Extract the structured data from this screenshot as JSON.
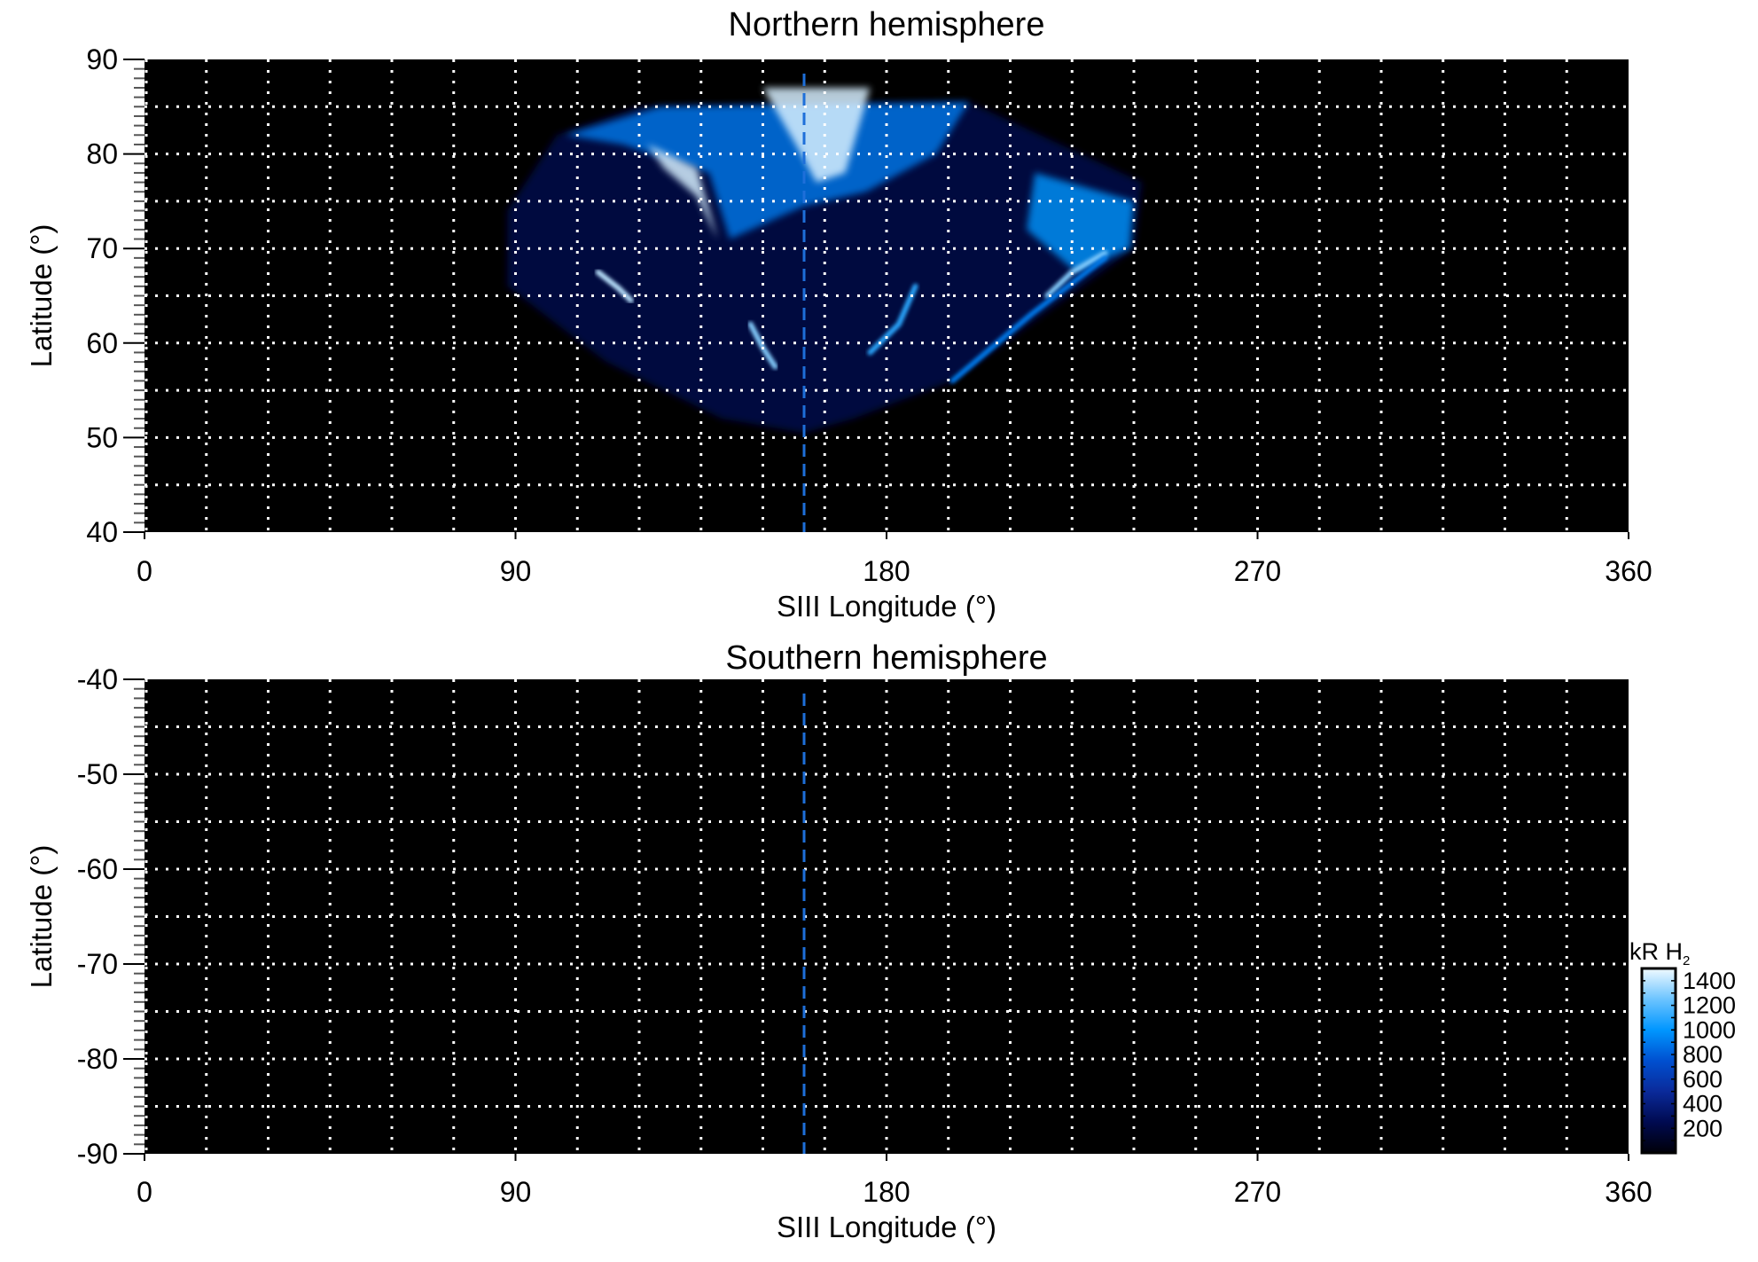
{
  "chart_data": [
    {
      "type": "heatmap",
      "title": "Northern hemisphere",
      "xlabel": "SIII Longitude (°)",
      "ylabel": "Latitude (°)",
      "xlim": [
        0,
        360
      ],
      "ylim": [
        40,
        90
      ],
      "xticks": [
        0,
        90,
        180,
        270,
        360
      ],
      "yticks": [
        40,
        50,
        60,
        70,
        80,
        90
      ],
      "grid": true,
      "grid_x_step": 15,
      "grid_y_step": 5,
      "reference_longitude": 160,
      "reference_line_color": "#1e6fd9",
      "background_color": "#000000",
      "features": [
        {
          "kind": "region",
          "kR": 250,
          "points": [
            [
              88,
              74
            ],
            [
              100,
              82
            ],
            [
              120,
              85
            ],
            [
              200,
              85.5
            ],
            [
              242,
              77
            ],
            [
              240,
              70
            ],
            [
              218,
              63
            ],
            [
              196,
              56
            ],
            [
              172,
              52
            ],
            [
              160,
              50.5
            ],
            [
              140,
              52
            ],
            [
              112,
              58
            ],
            [
              88,
              66
            ]
          ]
        },
        {
          "kind": "region",
          "kR": 900,
          "points": [
            [
              102,
              82
            ],
            [
              125,
              85
            ],
            [
              200,
              85.5
            ],
            [
              192,
              80
            ],
            [
              175,
              76
            ],
            [
              160,
              74.5
            ],
            [
              142,
              71
            ],
            [
              137,
              78
            ],
            [
              116,
              81
            ]
          ]
        },
        {
          "kind": "region",
          "kR": 1000,
          "points": [
            [
              216,
              78
            ],
            [
              240,
              75
            ],
            [
              239,
              70
            ],
            [
              226,
              67.5
            ],
            [
              214,
              72
            ]
          ]
        },
        {
          "kind": "region",
          "kR": 1450,
          "points": [
            [
              150,
              87
            ],
            [
              176,
              87
            ],
            [
              170,
              78
            ],
            [
              163,
              77
            ],
            [
              158,
              81
            ]
          ]
        },
        {
          "kind": "region",
          "kR": 1450,
          "points": [
            [
              122,
              81
            ],
            [
              134,
              78.5
            ],
            [
              139,
              71
            ],
            [
              134,
              75.5
            ],
            [
              126,
              78.5
            ]
          ]
        },
        {
          "kind": "arc",
          "kR": 1400,
          "points": [
            [
              110,
              67.5
            ],
            [
              115,
              65.8
            ],
            [
              118,
              64.5
            ]
          ]
        },
        {
          "kind": "arc",
          "kR": 1300,
          "points": [
            [
              147,
              62
            ],
            [
              150,
              59.5
            ],
            [
              153,
              57.5
            ]
          ]
        },
        {
          "kind": "arc",
          "kR": 1300,
          "points": [
            [
              219,
              65
            ],
            [
              225,
              67.5
            ],
            [
              233,
              69.5
            ]
          ]
        },
        {
          "kind": "arc",
          "kR": 1100,
          "points": [
            [
              187,
              66
            ],
            [
              183,
              62
            ],
            [
              176,
              59
            ]
          ]
        },
        {
          "kind": "arc",
          "kR": 900,
          "points": [
            [
              196,
              56
            ],
            [
              215,
              63
            ],
            [
              233,
              69
            ]
          ]
        }
      ]
    },
    {
      "type": "heatmap",
      "title": "Southern hemisphere",
      "xlabel": "SIII Longitude (°)",
      "ylabel": "Latitude (°)",
      "xlim": [
        0,
        360
      ],
      "ylim": [
        -90,
        -40
      ],
      "xticks": [
        0,
        90,
        180,
        270,
        360
      ],
      "yticks": [
        -40,
        -50,
        -60,
        -70,
        -80,
        -90
      ],
      "grid": true,
      "grid_x_step": 15,
      "grid_y_step": 5,
      "reference_longitude": 160,
      "reference_line_color": "#1e6fd9",
      "background_color": "#000000",
      "features": []
    }
  ],
  "colorbar": {
    "label": "kR H",
    "label_sub": "2",
    "ticks": [
      200,
      400,
      600,
      800,
      1000,
      1200,
      1400
    ],
    "range": [
      0,
      1500
    ],
    "colors": [
      "#000008",
      "#000a50",
      "#0a2a9a",
      "#0050d0",
      "#0096ff",
      "#6cc4ff",
      "#f0faff"
    ]
  }
}
